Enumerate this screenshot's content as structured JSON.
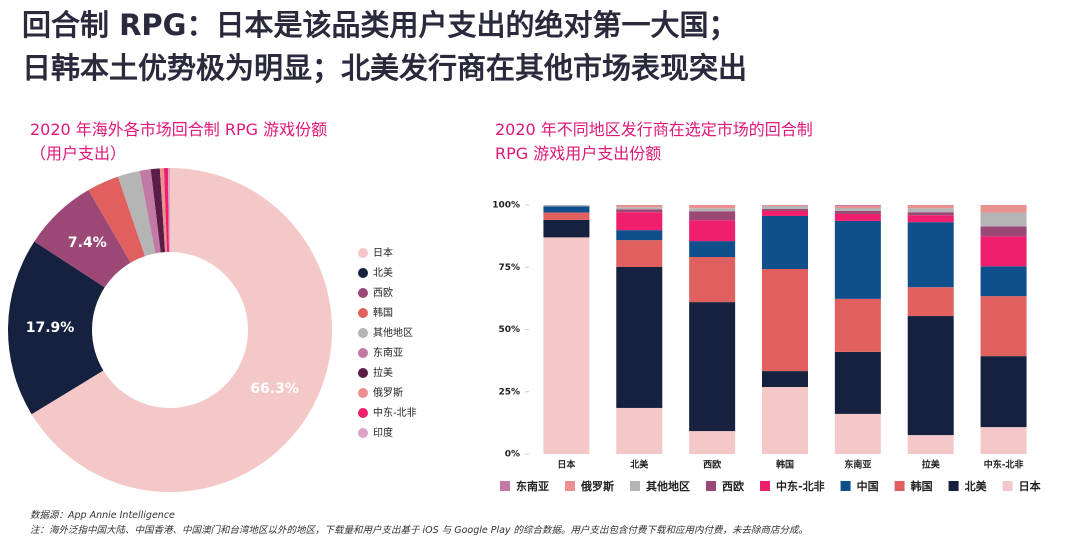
{
  "header": {
    "title_lines": [
      "回合制 RPG：日本是该品类用户支出的绝对第一大国；",
      "日韩本土优势极为明显；北美发行商在其他市场表现突出"
    ]
  },
  "chart_data": [
    {
      "type": "pie",
      "title": "2020 年海外各市场回合制 RPG 游戏份额（用户支出）",
      "categories": [
        "日本",
        "北美",
        "西欧",
        "韩国",
        "其他地区",
        "东南亚",
        "拉美",
        "俄罗斯",
        "中东-北非",
        "印度"
      ],
      "values": [
        66.3,
        17.9,
        7.4,
        3.2,
        2.2,
        1.1,
        0.9,
        0.4,
        0.4,
        0.2
      ],
      "value_labels": [
        "66.3%",
        "17.9%",
        "7.4%",
        null,
        null,
        null,
        null,
        null,
        null,
        null
      ],
      "colors": [
        "#f4c8c8",
        "#15213f",
        "#9c4876",
        "#e0605f",
        "#b5b5b5",
        "#c27aa4",
        "#5a1d47",
        "#eb9090",
        "#f01f6d",
        "#dba3c4"
      ]
    },
    {
      "type": "stacked-bar",
      "title": "2020 年不同地区发行商在选定市场的回合制 RPG 游戏用户支出份额",
      "categories": [
        "日本",
        "北美",
        "西欧",
        "韩国",
        "东南亚",
        "拉美",
        "中东-北非"
      ],
      "ylim": [
        0,
        100
      ],
      "yticks": [
        {
          "value": 0,
          "label": "0%"
        },
        {
          "value": 25,
          "label": "25%"
        },
        {
          "value": 50,
          "label": "50%"
        },
        {
          "value": 75,
          "label": "75%"
        },
        {
          "value": 100,
          "label": "100%"
        }
      ],
      "series": [
        {
          "name": "东南亚",
          "color": "#c27aa4",
          "values": [
            0,
            0,
            0,
            0,
            0.4,
            0,
            0
          ]
        },
        {
          "name": "俄罗斯",
          "color": "#eb9090",
          "values": [
            0,
            0.9,
            1.3,
            0.4,
            0.8,
            1.3,
            3
          ]
        },
        {
          "name": "其他地区",
          "color": "#b5b5b5",
          "values": [
            0.5,
            0.8,
            1.2,
            1.2,
            1.2,
            1.6,
            5.6
          ]
        },
        {
          "name": "西欧",
          "color": "#9c4876",
          "values": [
            0,
            1.2,
            3.6,
            0.8,
            1.2,
            1.2,
            4
          ]
        },
        {
          "name": "中东-北非",
          "color": "#f01f6d",
          "values": [
            0,
            7.2,
            8.4,
            2,
            2.8,
            2.8,
            12
          ]
        },
        {
          "name": "中国",
          "color": "#0f4f8c",
          "values": [
            2.5,
            4,
            6.4,
            21.3,
            31.3,
            26.1,
            12
          ]
        },
        {
          "name": "韩国",
          "color": "#e0605f",
          "values": [
            3,
            10.8,
            18.1,
            41,
            21.3,
            11.6,
            24.1
          ]
        },
        {
          "name": "北美",
          "color": "#15213f",
          "values": [
            7,
            56.6,
            51.8,
            6.4,
            24.9,
            47.8,
            28.5
          ]
        },
        {
          "name": "日本",
          "color": "#f4c8c8",
          "values": [
            87,
            18.5,
            9.2,
            26.9,
            16.1,
            7.6,
            10.8
          ]
        }
      ]
    }
  ],
  "footer": {
    "source": "数据源：App Annie Intelligence",
    "note": "注：海外泛指中国大陆、中国香港、中国澳门和台湾地区以外的地区，下载量和用户支出基于 iOS 与 Google Play 的综合数据。用户支出包含付费下载和应用内付费，未去除商店分成。"
  }
}
